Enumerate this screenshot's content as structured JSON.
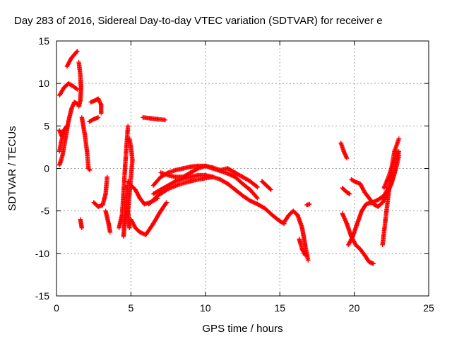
{
  "chart_data": {
    "type": "scatter",
    "title": "Day 283 of 2016, Sidereal Day-to-day VTEC variation (SDTVAR) for receiver e",
    "xlabel": "GPS time / hours",
    "ylabel": "SDTVAR / TECUs",
    "xlim": [
      0,
      25
    ],
    "ylim": [
      -15,
      15
    ],
    "xticks": [
      0,
      5,
      10,
      15,
      20,
      25
    ],
    "yticks": [
      -15,
      -10,
      -5,
      0,
      5,
      10,
      15
    ],
    "grid": true,
    "marker": "plus",
    "color": "#ff0000",
    "segments": [
      [
        [
          0.2,
          8.6
        ],
        [
          0.5,
          9.5
        ],
        [
          0.8,
          10.0
        ],
        [
          1.1,
          9.7
        ],
        [
          1.4,
          9.3
        ]
      ],
      [
        [
          0.7,
          12.0
        ],
        [
          1.0,
          13.0
        ],
        [
          1.4,
          13.8
        ]
      ],
      [
        [
          1.5,
          12.5
        ],
        [
          1.6,
          11.0
        ],
        [
          1.65,
          9.5
        ],
        [
          1.6,
          8.0
        ],
        [
          1.5,
          7.3
        ]
      ],
      [
        [
          0.2,
          4.5
        ],
        [
          0.35,
          3.8
        ],
        [
          0.45,
          4.3
        ]
      ],
      [
        [
          0.2,
          0.4
        ],
        [
          0.4,
          1.5
        ],
        [
          0.6,
          3.5
        ],
        [
          0.8,
          5.5
        ],
        [
          1.0,
          7.0
        ],
        [
          1.2,
          7.8
        ],
        [
          1.4,
          7.6
        ]
      ],
      [
        [
          0.2,
          2.0
        ],
        [
          0.3,
          3.0
        ],
        [
          0.5,
          4.5
        ],
        [
          0.7,
          5.0
        ]
      ],
      [
        [
          1.7,
          6.0
        ],
        [
          1.9,
          4.0
        ],
        [
          2.05,
          2.0
        ],
        [
          2.15,
          0.0
        ],
        [
          2.25,
          -0.2
        ]
      ],
      [
        [
          1.6,
          -6.0
        ],
        [
          1.7,
          -7.0
        ]
      ],
      [
        [
          2.2,
          5.5
        ],
        [
          2.5,
          5.8
        ],
        [
          2.8,
          6.0
        ]
      ],
      [
        [
          2.3,
          7.8
        ],
        [
          2.6,
          8.0
        ],
        [
          2.8,
          8.2
        ],
        [
          3.0,
          7.5
        ],
        [
          3.0,
          6.5
        ]
      ],
      [
        [
          2.5,
          -4.0
        ],
        [
          2.8,
          -4.5
        ],
        [
          3.1,
          -4.3
        ],
        [
          3.3,
          -3.0
        ],
        [
          3.4,
          -1.0
        ]
      ],
      [
        [
          3.3,
          -5.0
        ],
        [
          3.5,
          -6.5
        ],
        [
          3.6,
          -7.5
        ]
      ],
      [
        [
          4.2,
          -7.0
        ],
        [
          4.4,
          -5.5
        ],
        [
          4.5,
          -3.0
        ],
        [
          4.6,
          0.0
        ],
        [
          4.7,
          2.5
        ],
        [
          4.8,
          5.0
        ]
      ],
      [
        [
          4.5,
          -8.0
        ],
        [
          4.6,
          -6.0
        ],
        [
          4.7,
          -4.0
        ],
        [
          4.75,
          -2.0
        ]
      ],
      [
        [
          4.9,
          3.5
        ],
        [
          5.0,
          2.5
        ],
        [
          5.1,
          1.0
        ],
        [
          5.0,
          -1.0
        ],
        [
          4.9,
          -3.0
        ],
        [
          4.8,
          -5.0
        ],
        [
          4.9,
          -7.0
        ]
      ],
      [
        [
          4.8,
          -1.5
        ],
        [
          5.0,
          -2.0
        ],
        [
          5.3,
          -2.5
        ],
        [
          5.6,
          -3.5
        ],
        [
          5.9,
          -4.2
        ],
        [
          6.3,
          -4.0
        ],
        [
          6.8,
          -3.5
        ]
      ],
      [
        [
          5.0,
          -6.0
        ],
        [
          5.3,
          -7.0
        ],
        [
          5.6,
          -7.5
        ],
        [
          6.0,
          -7.8
        ],
        [
          6.5,
          -6.5
        ],
        [
          7.0,
          -5.0
        ],
        [
          7.4,
          -4.0
        ]
      ],
      [
        [
          5.8,
          6.0
        ],
        [
          6.3,
          5.9
        ],
        [
          6.8,
          5.8
        ],
        [
          7.3,
          5.7
        ]
      ],
      [
        [
          6.5,
          -2.0
        ],
        [
          7.0,
          -1.0
        ],
        [
          7.5,
          -0.5
        ],
        [
          8.0,
          -0.2
        ],
        [
          8.5,
          0.0
        ],
        [
          9.0,
          0.2
        ],
        [
          9.5,
          0.3
        ],
        [
          10.0,
          0.3
        ],
        [
          10.5,
          0.0
        ],
        [
          11.0,
          -0.3
        ],
        [
          11.5,
          -0.6
        ],
        [
          12.0,
          -1.0
        ],
        [
          12.5,
          -1.8
        ],
        [
          13.0,
          -2.5
        ],
        [
          13.5,
          -3.5
        ]
      ],
      [
        [
          6.5,
          -3.0
        ],
        [
          7.0,
          -2.5
        ],
        [
          7.5,
          -2.0
        ],
        [
          8.0,
          -1.5
        ],
        [
          8.5,
          -1.2
        ],
        [
          9.0,
          -1.0
        ],
        [
          9.5,
          -0.8
        ],
        [
          10.0,
          -0.8
        ],
        [
          10.5,
          -1.0
        ],
        [
          11.0,
          -1.3
        ],
        [
          11.5,
          -1.8
        ],
        [
          12.0,
          -2.5
        ],
        [
          12.5,
          -3.2
        ],
        [
          13.0,
          -3.8
        ],
        [
          13.5,
          -4.2
        ],
        [
          14.0,
          -4.7
        ],
        [
          14.5,
          -5.5
        ],
        [
          15.0,
          -6.2
        ],
        [
          15.3,
          -6.5
        ]
      ],
      [
        [
          7.0,
          -0.5
        ],
        [
          7.5,
          -0.8
        ],
        [
          8.0,
          -1.0
        ],
        [
          8.5,
          -1.0
        ],
        [
          9.0,
          -0.5
        ],
        [
          9.5,
          0.0
        ],
        [
          10.0,
          0.3
        ],
        [
          10.5,
          0.1
        ],
        [
          11.0,
          -0.2
        ]
      ],
      [
        [
          6.2,
          -4.2
        ],
        [
          6.8,
          -3.2
        ],
        [
          7.5,
          -2.4
        ],
        [
          8.2,
          -1.9
        ],
        [
          9.0,
          -1.5
        ],
        [
          9.8,
          -1.2
        ],
        [
          10.5,
          -1.0
        ]
      ],
      [
        [
          11.0,
          -0.2
        ],
        [
          11.5,
          0.0
        ],
        [
          12.0,
          -0.5
        ],
        [
          12.5,
          -1.0
        ],
        [
          13.0,
          -1.5
        ],
        [
          13.5,
          -2.2
        ]
      ],
      [
        [
          13.8,
          -1.5
        ],
        [
          14.1,
          -2.0
        ],
        [
          14.4,
          -2.5
        ]
      ],
      [
        [
          15.3,
          -6.3
        ],
        [
          15.6,
          -5.5
        ],
        [
          15.9,
          -5.0
        ],
        [
          16.2,
          -5.5
        ],
        [
          16.5,
          -7.0
        ],
        [
          16.7,
          -9.0
        ],
        [
          16.9,
          -10.8
        ]
      ],
      [
        [
          16.3,
          -8.3
        ],
        [
          16.5,
          -9.5
        ],
        [
          16.7,
          -10.2
        ]
      ],
      [
        [
          16.8,
          -4.3
        ],
        [
          17.0,
          -4.2
        ]
      ],
      [
        [
          19.1,
          3.0
        ],
        [
          19.3,
          2.0
        ],
        [
          19.5,
          1.2
        ]
      ],
      [
        [
          19.2,
          -2.3
        ],
        [
          19.5,
          -2.8
        ],
        [
          19.7,
          -3.0
        ]
      ],
      [
        [
          19.2,
          -5.3
        ],
        [
          19.5,
          -6.5
        ],
        [
          19.8,
          -8.0
        ],
        [
          20.1,
          -9.0
        ],
        [
          20.4,
          -9.5
        ],
        [
          20.7,
          -10.2
        ],
        [
          21.0,
          -11.0
        ],
        [
          21.3,
          -11.2
        ]
      ],
      [
        [
          19.6,
          -9.0
        ],
        [
          19.9,
          -8.0
        ],
        [
          20.2,
          -6.5
        ],
        [
          20.5,
          -5.0
        ],
        [
          20.8,
          -4.2
        ],
        [
          21.2,
          -4.0
        ],
        [
          21.6,
          -3.7
        ],
        [
          22.0,
          -3.2
        ],
        [
          22.3,
          -2.3
        ],
        [
          22.6,
          -1.0
        ],
        [
          22.8,
          0.5
        ],
        [
          23.0,
          2.0
        ]
      ],
      [
        [
          19.8,
          -1.3
        ],
        [
          20.1,
          -1.6
        ],
        [
          20.4,
          -1.8
        ],
        [
          20.7,
          -2.8
        ],
        [
          21.0,
          -3.5
        ],
        [
          21.3,
          -4.2
        ],
        [
          21.6,
          -4.5
        ],
        [
          21.9,
          -4.0
        ],
        [
          22.2,
          -3.0
        ],
        [
          22.5,
          -1.8
        ],
        [
          22.8,
          0.0
        ],
        [
          23.0,
          1.5
        ]
      ],
      [
        [
          21.9,
          -9.0
        ],
        [
          22.1,
          -6.0
        ],
        [
          22.3,
          -3.0
        ],
        [
          22.5,
          0.0
        ],
        [
          22.7,
          2.0
        ],
        [
          22.9,
          3.0
        ],
        [
          23.0,
          3.5
        ]
      ],
      [
        [
          22.0,
          -2.3
        ],
        [
          22.3,
          -1.0
        ],
        [
          22.6,
          0.5
        ],
        [
          22.9,
          2.0
        ]
      ]
    ]
  }
}
